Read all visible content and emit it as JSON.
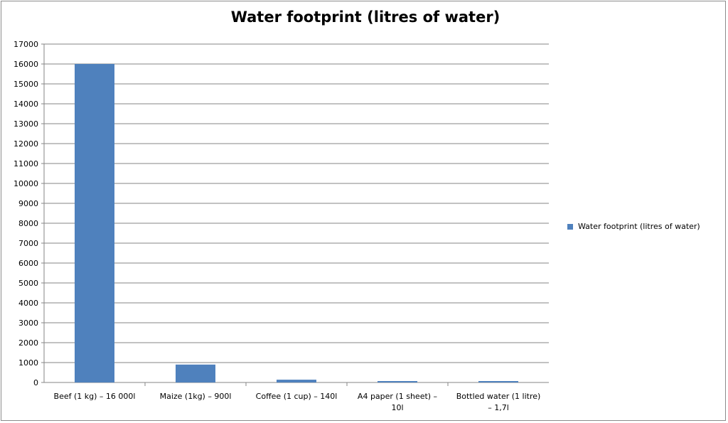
{
  "chart_data": {
    "type": "bar",
    "title": "Water footprint (litres of water)",
    "categories": [
      [
        "Beef (1 kg) – 16 000l"
      ],
      [
        "Maize (1kg) – 900l"
      ],
      [
        "Coffee (1 cup) – 140l"
      ],
      [
        "A4 paper (1 sheet) –",
        "10l"
      ],
      [
        "Bottled water (1 litre)",
        "– 1,7l"
      ]
    ],
    "series": [
      {
        "name": "Water footprint (litres of water)",
        "values": [
          16000,
          900,
          140,
          10,
          1.7
        ],
        "color": "#4f81bd"
      }
    ],
    "ylim": [
      0,
      17000
    ],
    "ytick_step": 1000,
    "grid": true,
    "legend_position": "right"
  }
}
